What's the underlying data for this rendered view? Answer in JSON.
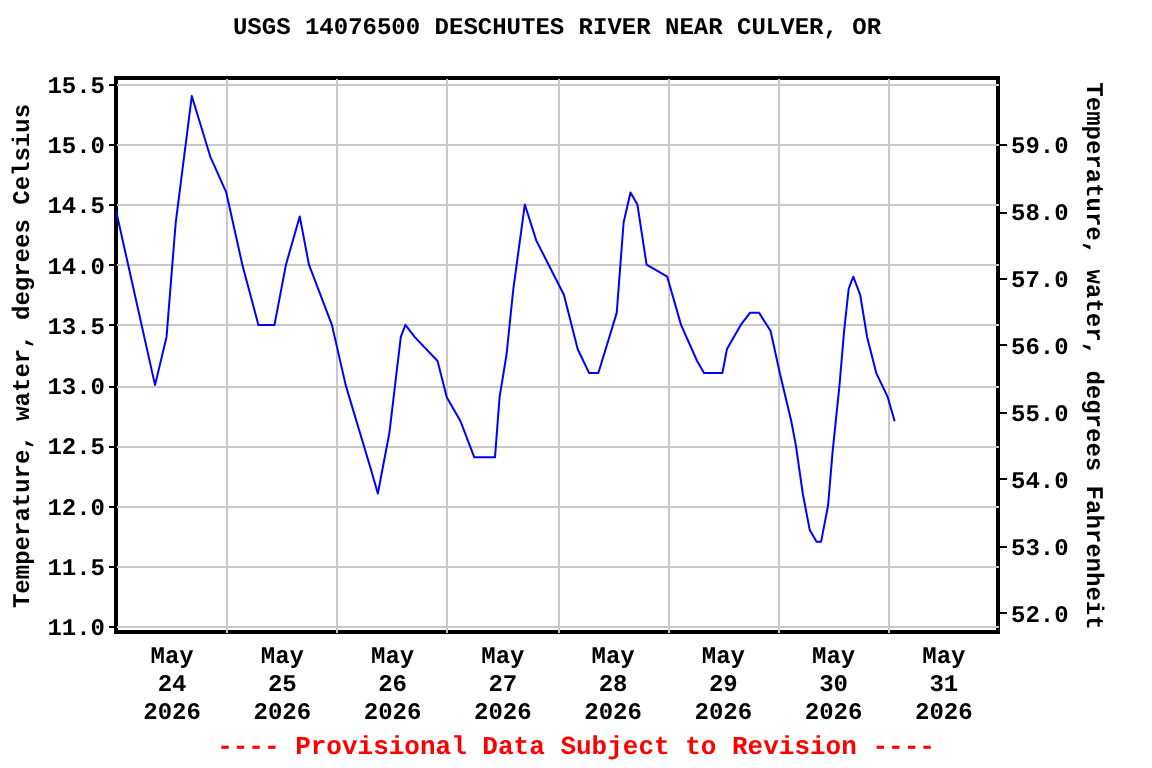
{
  "chart_data": {
    "type": "line",
    "title": "USGS 14076500 DESCHUTES RIVER NEAR CULVER, OR",
    "ylabel": "Temperature, water, degrees Celsius",
    "y2label": "Temperature, water, degrees Fahrenheit",
    "annotations": [
      "---- Provisional Data Subject to Revision ----"
    ],
    "x": [
      "2026-05-24T00:00",
      "2026-05-24T08:30",
      "2026-05-24T11:00",
      "2026-05-24T13:00",
      "2026-05-24T16:30",
      "2026-05-24T20:30",
      "2026-05-25T00:00",
      "2026-05-25T03:30",
      "2026-05-25T07:00",
      "2026-05-25T10:30",
      "2026-05-25T13:00",
      "2026-05-25T16:00",
      "2026-05-25T18:00",
      "2026-05-25T23:00",
      "2026-05-26T02:00",
      "2026-05-26T07:30",
      "2026-05-26T09:00",
      "2026-05-26T11:30",
      "2026-05-26T14:00",
      "2026-05-26T15:00",
      "2026-05-26T17:00",
      "2026-05-26T22:00",
      "2026-05-27T00:00",
      "2026-05-27T03:00",
      "2026-05-27T05:00",
      "2026-05-27T06:00",
      "2026-05-27T10:30",
      "2026-05-27T11:30",
      "2026-05-27T13:00",
      "2026-05-27T14:30",
      "2026-05-27T17:00",
      "2026-05-27T19:30",
      "2026-05-27T23:30",
      "2026-05-28T01:30",
      "2026-05-28T04:30",
      "2026-05-28T07:00",
      "2026-05-28T09:00",
      "2026-05-28T11:00",
      "2026-05-28T13:00",
      "2026-05-28T14:30",
      "2026-05-28T16:00",
      "2026-05-28T17:30",
      "2026-05-28T19:30",
      "2026-05-29T00:00",
      "2026-05-29T03:00",
      "2026-05-29T06:30",
      "2026-05-29T08:00",
      "2026-05-29T12:00",
      "2026-05-29T13:00",
      "2026-05-29T16:00",
      "2026-05-29T18:00",
      "2026-05-29T20:00",
      "2026-05-29T22:30",
      "2026-05-30T00:30",
      "2026-05-30T03:00",
      "2026-05-30T04:00",
      "2026-05-30T05:30",
      "2026-05-30T07:00",
      "2026-05-30T08:30",
      "2026-05-30T09:30",
      "2026-05-30T11:00",
      "2026-05-30T12:00",
      "2026-05-30T13:30",
      "2026-05-30T14:30",
      "2026-05-30T15:30",
      "2026-05-30T16:30",
      "2026-05-30T18:00",
      "2026-05-30T19:30",
      "2026-05-30T21:30",
      "2026-05-31T00:00",
      "2026-05-31T01:30"
    ],
    "series": [
      {
        "color": "#0000ff",
        "values": [
          14.45,
          13.0,
          13.4,
          14.35,
          15.4,
          14.9,
          14.6,
          14.0,
          13.5,
          13.5,
          14.0,
          14.4,
          14.0,
          13.5,
          13.0,
          12.3,
          12.1,
          12.6,
          13.4,
          13.5,
          13.4,
          13.2,
          12.9,
          12.7,
          12.5,
          12.4,
          12.4,
          12.9,
          13.25,
          13.8,
          14.5,
          14.2,
          13.9,
          13.75,
          13.3,
          13.1,
          13.1,
          13.35,
          13.6,
          14.35,
          14.6,
          14.5,
          14.0,
          13.9,
          13.5,
          13.2,
          13.1,
          13.1,
          13.3,
          13.5,
          13.6,
          13.6,
          13.45,
          13.1,
          12.7,
          12.5,
          12.1,
          11.8,
          11.7,
          11.7,
          12.0,
          12.45,
          13.0,
          13.45,
          13.8,
          13.9,
          13.75,
          13.4,
          13.1,
          12.9,
          12.7
        ]
      }
    ],
    "xlim": [
      "2026-05-24T00:00",
      "2026-06-01T00:00"
    ],
    "xticks": [
      {
        "value": "2026-05-24T12:00",
        "label": "May 24 2026"
      },
      {
        "value": "2026-05-25T12:00",
        "label": "May 25 2026"
      },
      {
        "value": "2026-05-26T12:00",
        "label": "May 26 2026"
      },
      {
        "value": "2026-05-27T12:00",
        "label": "May 27 2026"
      },
      {
        "value": "2026-05-28T12:00",
        "label": "May 28 2026"
      },
      {
        "value": "2026-05-29T12:00",
        "label": "May 29 2026"
      },
      {
        "value": "2026-05-30T12:00",
        "label": "May 30 2026"
      },
      {
        "value": "2026-05-31T12:00",
        "label": "May 31 2026"
      },
      {
        "value": "2026-05-25T00:00",
        "label": null
      },
      {
        "value": "2026-05-26T00:00",
        "label": null
      },
      {
        "value": "2026-05-27T00:00",
        "label": null
      },
      {
        "value": "2026-05-28T00:00",
        "label": null
      },
      {
        "value": "2026-05-29T00:00",
        "label": null
      },
      {
        "value": "2026-05-30T00:00",
        "label": null
      },
      {
        "value": "2026-05-31T00:00",
        "label": null
      }
    ],
    "ylim": [
      10.95,
      15.55
    ],
    "yticks": [
      {
        "value": 11,
        "label": "11.0"
      },
      {
        "value": 11.5,
        "label": "11.5"
      },
      {
        "value": 12,
        "label": "12.0"
      },
      {
        "value": 12.5,
        "label": "12.5"
      },
      {
        "value": 13,
        "label": "13.0"
      },
      {
        "value": 13.5,
        "label": "13.5"
      },
      {
        "value": 14,
        "label": "14.0"
      },
      {
        "value": 14.5,
        "label": "14.5"
      },
      {
        "value": 15,
        "label": "15.0"
      },
      {
        "value": 15.5,
        "label": "15.5"
      }
    ],
    "y2lim": [
      51.71,
      59.99
    ],
    "y2ticks": [
      {
        "value": 52,
        "label": "52.0"
      },
      {
        "value": 53,
        "label": "53.0"
      },
      {
        "value": 54,
        "label": "54.0"
      },
      {
        "value": 55,
        "label": "55.0"
      },
      {
        "value": 56,
        "label": "56.0"
      },
      {
        "value": 57,
        "label": "57.0"
      },
      {
        "value": 58,
        "label": "58.0"
      },
      {
        "value": 59,
        "label": "59.0"
      }
    ],
    "grid": true
  }
}
